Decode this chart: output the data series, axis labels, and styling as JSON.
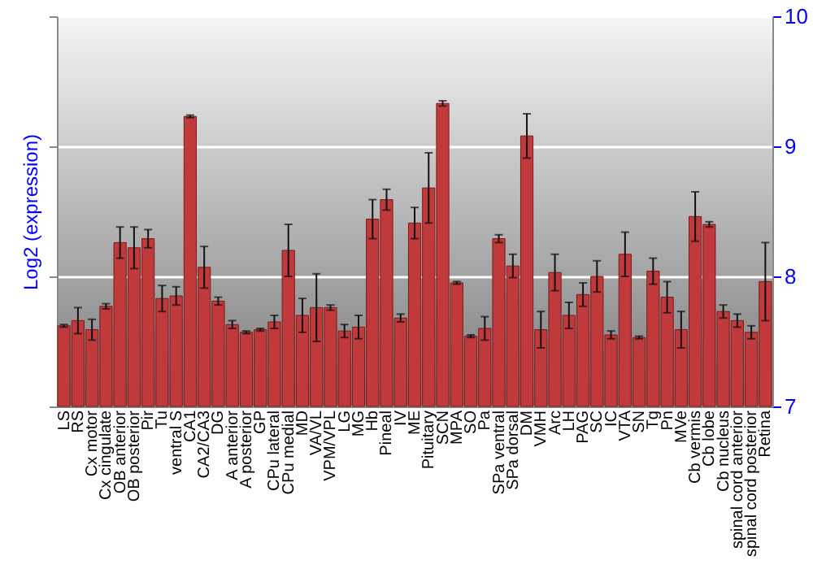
{
  "chart_data": {
    "type": "bar",
    "ylabel": "Log2 (expression)",
    "categories": [
      "LS",
      "RS",
      "Cx motor",
      "Cx cingulate",
      "OB anterior",
      "OB posterior",
      "Pir",
      "Tu",
      "ventral S",
      "CA1",
      "CA2/CA3",
      "DG",
      "A anterior",
      "A posterior",
      "GP",
      "CPu lateral",
      "CPu medial",
      "MD",
      "VA/VL",
      "VPM/VPL",
      "LG",
      "MG",
      "Hb",
      "Pineal",
      "IV",
      "ME",
      "Pituitary",
      "SCN",
      "MPA",
      "SO",
      "Pa",
      "SPa ventral",
      "SPa dorsal",
      "DM",
      "VMH",
      "Arc",
      "LH",
      "PAG",
      "SC",
      "IC",
      "VTA",
      "SN",
      "Tg",
      "Pn",
      "MVe",
      "Cb vermis",
      "Cb lobe",
      "Cb nucleus",
      "spinal cord anterior",
      "spinal cord posterior",
      "Retina"
    ],
    "values": [
      7.62,
      7.66,
      7.59,
      7.77,
      8.26,
      8.22,
      8.29,
      7.83,
      7.85,
      9.23,
      8.07,
      7.81,
      7.63,
      7.57,
      7.59,
      7.65,
      8.2,
      7.7,
      7.76,
      7.76,
      7.58,
      7.61,
      8.44,
      8.59,
      7.68,
      8.41,
      8.68,
      9.33,
      7.95,
      7.54,
      7.6,
      8.29,
      8.08,
      9.08,
      7.59,
      8.03,
      7.7,
      7.86,
      8.0,
      7.55,
      8.17,
      7.53,
      8.04,
      7.84,
      7.59,
      8.46,
      8.4,
      7.73,
      7.66,
      7.57,
      7.96
    ],
    "errors": [
      0.01,
      0.1,
      0.08,
      0.02,
      0.12,
      0.16,
      0.07,
      0.1,
      0.07,
      0.01,
      0.16,
      0.03,
      0.03,
      0.01,
      0.01,
      0.05,
      0.2,
      0.13,
      0.26,
      0.02,
      0.05,
      0.09,
      0.15,
      0.08,
      0.03,
      0.12,
      0.27,
      0.02,
      0.01,
      0.01,
      0.09,
      0.03,
      0.09,
      0.17,
      0.14,
      0.14,
      0.1,
      0.09,
      0.12,
      0.03,
      0.17,
      0.01,
      0.1,
      0.12,
      0.14,
      0.19,
      0.02,
      0.05,
      0.05,
      0.05,
      0.3
    ],
    "color": "#c0393b",
    "ylim": [
      7,
      10
    ],
    "yticks": [
      7,
      8,
      9,
      10
    ],
    "grid": true
  }
}
